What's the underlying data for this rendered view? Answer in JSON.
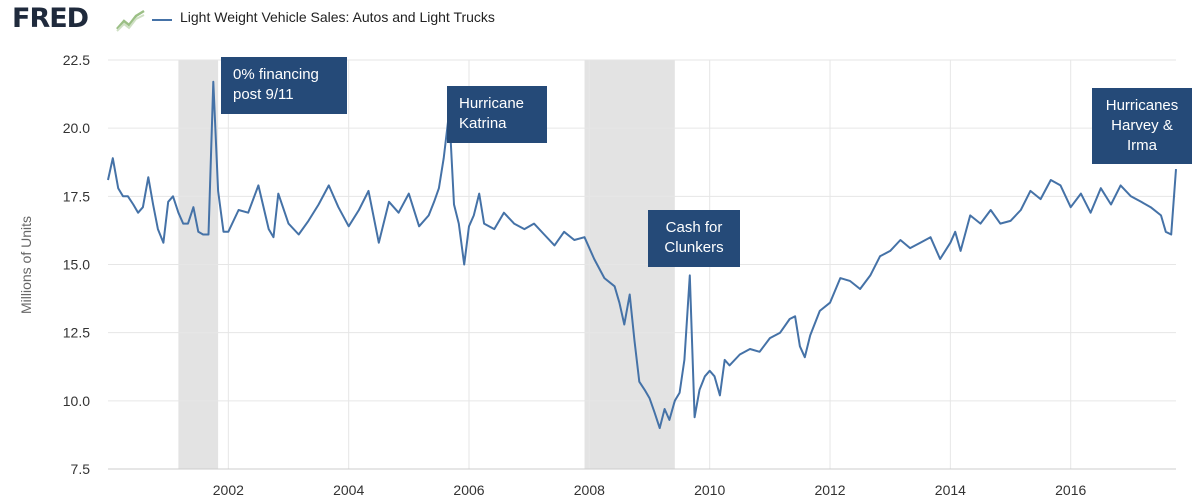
{
  "header": {
    "logo_text": "FRED",
    "series_label": "Light Weight Vehicle Sales: Autos and Light Trucks"
  },
  "colors": {
    "line": "#4572a7",
    "recession": "#e3e3e3",
    "annotation_bg": "#254a78",
    "annotation_text": "#ffffff",
    "grid": "#e6e6e6"
  },
  "chart_data": {
    "type": "line",
    "title": "Light Weight Vehicle Sales: Autos and Light Trucks",
    "xlabel": "",
    "ylabel": "Millions of Units",
    "ylim": [
      7.5,
      22.5
    ],
    "xlim": [
      2000.0,
      2017.75
    ],
    "yticks": [
      "7.5",
      "10.0",
      "12.5",
      "15.0",
      "17.5",
      "20.0",
      "22.5"
    ],
    "xticks": [
      "2002",
      "2004",
      "2006",
      "2008",
      "2010",
      "2012",
      "2014",
      "2016"
    ],
    "grid": true,
    "recessions": [
      [
        2001.17,
        2001.83
      ],
      [
        2007.92,
        2009.42
      ]
    ],
    "series": [
      {
        "name": "Light Weight Vehicle Sales: Autos and Light Trucks",
        "x": [
          2000.0,
          2000.08,
          2000.17,
          2000.25,
          2000.33,
          2000.42,
          2000.5,
          2000.58,
          2000.67,
          2000.75,
          2000.83,
          2000.92,
          2001.0,
          2001.08,
          2001.17,
          2001.25,
          2001.33,
          2001.42,
          2001.5,
          2001.58,
          2001.67,
          2001.75,
          2001.83,
          2001.92,
          2002.0,
          2002.17,
          2002.33,
          2002.5,
          2002.67,
          2002.75,
          2002.83,
          2003.0,
          2003.17,
          2003.33,
          2003.5,
          2003.67,
          2003.83,
          2004.0,
          2004.17,
          2004.33,
          2004.5,
          2004.67,
          2004.83,
          2005.0,
          2005.17,
          2005.33,
          2005.42,
          2005.5,
          2005.58,
          2005.67,
          2005.75,
          2005.83,
          2005.92,
          2006.0,
          2006.08,
          2006.17,
          2006.25,
          2006.42,
          2006.58,
          2006.75,
          2006.92,
          2007.08,
          2007.25,
          2007.42,
          2007.58,
          2007.75,
          2007.92,
          2008.08,
          2008.25,
          2008.42,
          2008.5,
          2008.58,
          2008.67,
          2008.75,
          2008.83,
          2008.92,
          2009.0,
          2009.08,
          2009.17,
          2009.25,
          2009.33,
          2009.42,
          2009.5,
          2009.58,
          2009.67,
          2009.75,
          2009.83,
          2009.92,
          2010.0,
          2010.08,
          2010.17,
          2010.25,
          2010.33,
          2010.5,
          2010.67,
          2010.83,
          2011.0,
          2011.17,
          2011.33,
          2011.42,
          2011.5,
          2011.58,
          2011.67,
          2011.83,
          2012.0,
          2012.17,
          2012.33,
          2012.5,
          2012.67,
          2012.83,
          2013.0,
          2013.17,
          2013.33,
          2013.5,
          2013.67,
          2013.83,
          2014.0,
          2014.08,
          2014.17,
          2014.33,
          2014.5,
          2014.67,
          2014.83,
          2015.0,
          2015.17,
          2015.33,
          2015.5,
          2015.67,
          2015.83,
          2016.0,
          2016.17,
          2016.33,
          2016.5,
          2016.67,
          2016.83,
          2017.0,
          2017.17,
          2017.33,
          2017.5,
          2017.58,
          2017.67,
          2017.75
        ],
        "values": [
          18.1,
          18.9,
          17.8,
          17.5,
          17.5,
          17.2,
          16.9,
          17.1,
          18.2,
          17.2,
          16.3,
          15.8,
          17.3,
          17.5,
          16.9,
          16.5,
          16.5,
          17.1,
          16.2,
          16.1,
          16.1,
          21.7,
          17.7,
          16.2,
          16.2,
          17.0,
          16.9,
          17.9,
          16.3,
          16.0,
          17.6,
          16.5,
          16.1,
          16.6,
          17.2,
          17.9,
          17.1,
          16.4,
          17.0,
          17.7,
          15.8,
          17.3,
          16.9,
          17.6,
          16.4,
          16.8,
          17.3,
          17.8,
          18.9,
          20.6,
          17.2,
          16.5,
          15.0,
          16.4,
          16.8,
          17.6,
          16.5,
          16.3,
          16.9,
          16.5,
          16.3,
          16.5,
          16.1,
          15.7,
          16.2,
          15.9,
          16.0,
          15.2,
          14.5,
          14.2,
          13.6,
          12.8,
          13.9,
          12.2,
          10.7,
          10.4,
          10.1,
          9.6,
          9.0,
          9.7,
          9.3,
          10.0,
          10.3,
          11.5,
          14.6,
          9.4,
          10.4,
          10.9,
          11.1,
          10.9,
          10.2,
          11.5,
          11.3,
          11.7,
          11.9,
          11.8,
          12.3,
          12.5,
          13.0,
          13.1,
          12.0,
          11.6,
          12.4,
          13.3,
          13.6,
          14.5,
          14.4,
          14.1,
          14.6,
          15.3,
          15.5,
          15.9,
          15.6,
          15.8,
          16.0,
          15.2,
          15.8,
          16.2,
          15.5,
          16.8,
          16.5,
          17.0,
          16.5,
          16.6,
          17.0,
          17.7,
          17.4,
          18.1,
          17.9,
          17.1,
          17.6,
          16.9,
          17.8,
          17.2,
          17.9,
          17.5,
          17.3,
          17.1,
          16.8,
          16.2,
          16.1,
          18.5
        ]
      }
    ],
    "annotations": [
      {
        "lines": [
          "0% financing",
          "post 9/11"
        ]
      },
      {
        "lines": [
          "Hurricane",
          "Katrina"
        ]
      },
      {
        "lines": [
          "Cash for",
          "Clunkers"
        ]
      },
      {
        "lines": [
          "Hurricanes",
          "Harvey &",
          "Irma"
        ]
      }
    ]
  }
}
